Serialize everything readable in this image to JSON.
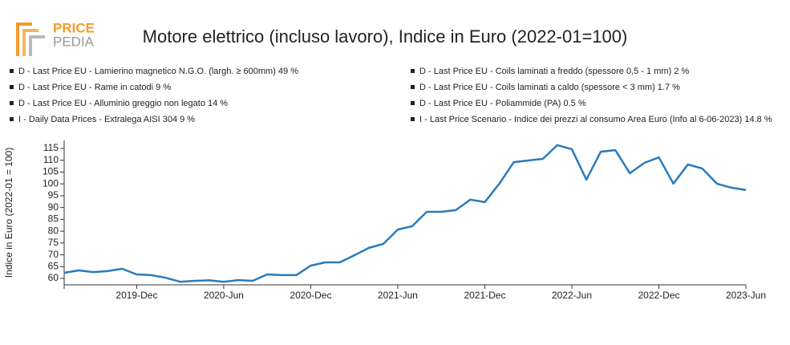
{
  "brand": {
    "line1": "PRICE",
    "line2": "PEDIA"
  },
  "chart_data": {
    "type": "line",
    "title": "Motore elettrico (incluso lavoro), Indice in Euro (2022-01=100)",
    "legend_items": [
      "D - Last Price EU - Lamierino magnetico N.G.O. (largh. ≥ 600mm) 49 %",
      "D - Last Price EU - Rame in catodi 9 %",
      "D - Last Price EU - Alluminio greggio non legato 14 %",
      "I - Daily Data Prices - Extralega AISI 304 9 %",
      "D - Last Price EU - Coils laminati a freddo (spessore 0,5 - 1 mm) 2 %",
      "D - Last Price EU - Coils laminati a caldo (spessore < 3 mm) 1.7 %",
      "D - Last Price EU - Poliammide (PA) 0.5 %",
      "I - Last Price Scenario - Indice dei prezzi al consumo Area Euro (Info al 6-06-2023) 14.8 %"
    ],
    "y_label": "Indice in Euro (2022-01 = 100)",
    "color": "#2b7bba",
    "x": [
      "2019-07",
      "2019-08",
      "2019-09",
      "2019-10",
      "2019-11",
      "2019-12",
      "2020-01",
      "2020-02",
      "2020-03",
      "2020-04",
      "2020-05",
      "2020-06",
      "2020-07",
      "2020-08",
      "2020-09",
      "2020-10",
      "2020-11",
      "2020-12",
      "2021-01",
      "2021-02",
      "2021-03",
      "2021-04",
      "2021-05",
      "2021-06",
      "2021-07",
      "2021-08",
      "2021-09",
      "2021-10",
      "2021-11",
      "2021-12",
      "2022-01",
      "2022-02",
      "2022-03",
      "2022-04",
      "2022-05",
      "2022-06",
      "2022-07",
      "2022-08",
      "2022-09",
      "2022-10",
      "2022-11",
      "2022-12",
      "2023-01",
      "2023-02",
      "2023-03",
      "2023-04",
      "2023-05",
      "2023-06"
    ],
    "values": [
      62.4,
      63.4,
      62.7,
      63.1,
      64.1,
      61.7,
      61.4,
      60.3,
      58.6,
      59.0,
      59.2,
      58.6,
      59.3,
      59.0,
      61.7,
      61.4,
      61.4,
      65.4,
      66.8,
      66.8,
      69.8,
      72.9,
      74.6,
      80.7,
      82.1,
      88.2,
      88.2,
      88.9,
      93.3,
      92.3,
      100.1,
      109.2,
      109.9,
      110.6,
      116.4,
      114.7,
      101.8,
      113.6,
      114.3,
      104.5,
      108.9,
      111.2,
      100.1,
      108.2,
      106.5,
      100.1,
      98.4,
      97.4
    ],
    "xlim": [
      "2019-07",
      "2023-06"
    ],
    "xticks": [
      {
        "value": "2019-12",
        "label": "2019-Dec"
      },
      {
        "value": "2020-06",
        "label": "2020-Jun"
      },
      {
        "value": "2020-12",
        "label": "2020-Dec"
      },
      {
        "value": "2021-06",
        "label": "2021-Jun"
      },
      {
        "value": "2021-12",
        "label": "2021-Dec"
      },
      {
        "value": "2022-06",
        "label": "2022-Jun"
      },
      {
        "value": "2022-12",
        "label": "2022-Dec"
      },
      {
        "value": "2023-06",
        "label": "2023-Jun"
      }
    ],
    "ylim": [
      57.3,
      118.4
    ],
    "yticks": [
      60,
      65,
      70,
      75,
      80,
      85,
      90,
      95,
      100,
      105,
      110,
      115
    ]
  }
}
